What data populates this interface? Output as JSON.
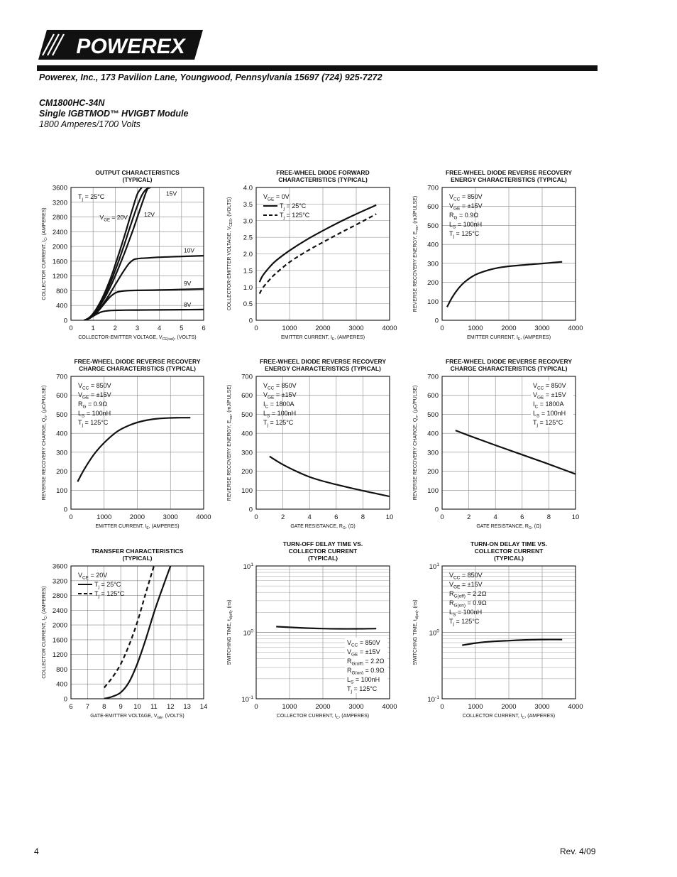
{
  "header": {
    "logo_text": "POWEREX",
    "address": "Powerex, Inc., 173 Pavilion Lane, Youngwood, Pennsylvania 15697 (724) 925-7272",
    "part_number": "CM1800HC-34N",
    "description": "Single IGBTMOD™ HVIGBT Module",
    "rating": "1800 Amperes/1700 Volts"
  },
  "footer": {
    "page": "4",
    "revision": "Rev. 4/09"
  },
  "chart_data": [
    {
      "id": "output",
      "type": "line",
      "title": [
        "OUTPUT CHARACTERISTICS",
        "(TYPICAL)"
      ],
      "xlabel": "COLLECTOR-EMITTER VOLTAGE, V_{CE(sat)}, (VOLTS)",
      "ylabel": "COLLECTOR CURRENT, I_{C}, (AMPERES)",
      "xlim": [
        0,
        6
      ],
      "ylim": [
        0,
        3600
      ],
      "xticks": [
        0,
        1,
        2,
        3,
        4,
        5,
        6
      ],
      "yticks": [
        0,
        400,
        800,
        1200,
        1600,
        2000,
        2400,
        2800,
        3200,
        3600
      ],
      "grid": true,
      "legend_text": [
        "T_{j} = 25°C"
      ],
      "series": [
        {
          "name": "V_{GE} = 20V",
          "style": "solid",
          "x": [
            0.6,
            0.8,
            1.0,
            1.2,
            1.4,
            1.6,
            1.8,
            2.0,
            2.2,
            2.4,
            2.6,
            2.8,
            3.0,
            3.2
          ],
          "y": [
            0,
            60,
            180,
            360,
            580,
            850,
            1150,
            1500,
            1870,
            2250,
            2650,
            3050,
            3420,
            3600
          ]
        },
        {
          "name": "15V",
          "style": "solid",
          "x": [
            0.6,
            0.8,
            1.0,
            1.2,
            1.4,
            1.6,
            1.8,
            2.0,
            2.2,
            2.4,
            2.6,
            2.8,
            3.0,
            3.2,
            3.4,
            3.6
          ],
          "y": [
            0,
            55,
            165,
            330,
            530,
            770,
            1040,
            1350,
            1680,
            2030,
            2400,
            2760,
            3100,
            3380,
            3550,
            3600
          ]
        },
        {
          "name": "12V",
          "style": "solid",
          "x": [
            0.6,
            0.8,
            1.0,
            1.2,
            1.4,
            1.6,
            1.8,
            2.0,
            2.2,
            2.4,
            2.6,
            2.8,
            3.0,
            3.2,
            3.4,
            3.5
          ],
          "y": [
            0,
            50,
            150,
            300,
            480,
            690,
            930,
            1200,
            1490,
            1790,
            2110,
            2440,
            2790,
            3140,
            3480,
            3600
          ]
        },
        {
          "name": "10V",
          "style": "solid",
          "x": [
            0.6,
            0.8,
            1.0,
            1.2,
            1.4,
            1.6,
            1.8,
            2.0,
            2.2,
            2.4,
            2.6,
            2.8,
            3.0,
            3.5,
            4.0,
            5.0,
            6.0
          ],
          "y": [
            0,
            45,
            130,
            250,
            400,
            570,
            760,
            960,
            1160,
            1350,
            1520,
            1630,
            1670,
            1690,
            1710,
            1730,
            1750
          ]
        },
        {
          "name": "9V",
          "style": "solid",
          "x": [
            0.6,
            0.8,
            1.0,
            1.2,
            1.4,
            1.6,
            1.8,
            2.0,
            2.2,
            2.5,
            3.0,
            4.0,
            5.0,
            6.0
          ],
          "y": [
            0,
            40,
            120,
            230,
            370,
            520,
            650,
            740,
            780,
            800,
            810,
            820,
            835,
            850
          ]
        },
        {
          "name": "8V",
          "style": "solid",
          "x": [
            0.6,
            0.8,
            1.0,
            1.2,
            1.4,
            1.6,
            1.8,
            2.0,
            2.5,
            3.0,
            4.0,
            5.0,
            6.0
          ],
          "y": [
            0,
            40,
            110,
            180,
            230,
            255,
            265,
            270,
            275,
            278,
            282,
            286,
            290
          ]
        }
      ],
      "curve_labels": [
        {
          "text": "V_{GE} = 20V",
          "x": 1.3,
          "y": 2730
        },
        {
          "text": "15V",
          "x": 4.3,
          "y": 3380
        },
        {
          "text": "12V",
          "x": 3.3,
          "y": 2810
        },
        {
          "text": "10V",
          "x": 5.1,
          "y": 1840
        },
        {
          "text": "9V",
          "x": 5.1,
          "y": 940
        },
        {
          "text": "8V",
          "x": 5.1,
          "y": 370
        }
      ]
    },
    {
      "id": "fwd-forward",
      "type": "line",
      "title": [
        "FREE-WHEEL DIODE FORWARD",
        "CHARACTERISTICS (TYPICAL)"
      ],
      "xlabel": "EMITTER CURRENT, I_{E}, (AMPERES)",
      "ylabel": "COLLECTOR-EMITTER VOLTAGE, V_{CES}, (VOLTS)",
      "xlim": [
        0,
        4000
      ],
      "ylim": [
        0,
        4.0
      ],
      "xticks": [
        0,
        1000,
        2000,
        3000,
        4000
      ],
      "yticks": [
        0,
        0.5,
        1.0,
        1.5,
        2.0,
        2.5,
        3.0,
        3.5,
        4.0
      ],
      "ytick_labels": [
        "0",
        "0.5",
        "1.0",
        "1.5",
        "2.0",
        "2.5",
        "3.0",
        "3.5",
        "4.0"
      ],
      "grid": true,
      "legend_text": [
        "V_{GE} = 0V"
      ],
      "series": [
        {
          "name": "T_{j} = 25°C",
          "style": "solid",
          "x": [
            100,
            200,
            400,
            600,
            1000,
            1500,
            2000,
            2500,
            3000,
            3600
          ],
          "y": [
            1.15,
            1.35,
            1.6,
            1.8,
            2.1,
            2.42,
            2.7,
            2.96,
            3.2,
            3.47
          ]
        },
        {
          "name": "T_{j} = 125°C",
          "style": "dashed",
          "x": [
            100,
            200,
            400,
            600,
            1000,
            1500,
            2000,
            2500,
            3000,
            3600
          ],
          "y": [
            0.8,
            0.98,
            1.22,
            1.42,
            1.75,
            2.07,
            2.35,
            2.62,
            2.88,
            3.2
          ]
        }
      ]
    },
    {
      "id": "fwd-rr-energy-ie",
      "type": "line",
      "title": [
        "FREE-WHEEL DIODE REVERSE RECOVERY",
        "ENERGY CHARACTERISTICS (TYPICAL)"
      ],
      "xlabel": "EMITTER CURRENT, I_{E}, (AMPERES)",
      "ylabel": "REVERSE RECOVERY ENERGY, E_{rec}, (mJ/PULSE)",
      "xlim": [
        0,
        4000
      ],
      "ylim": [
        0,
        700
      ],
      "xticks": [
        0,
        1000,
        2000,
        3000,
        4000
      ],
      "yticks": [
        0,
        100,
        200,
        300,
        400,
        500,
        600,
        700
      ],
      "grid": true,
      "legend_text": [
        "V_{CC} = 850V",
        "V_{GE} = ±15V",
        "R_{G} = 0.9Ω",
        "L_{S} = 100nH",
        "T_{j} = 125°C"
      ],
      "series": [
        {
          "name": "E_{rec}",
          "style": "solid",
          "x": [
            150,
            300,
            500,
            700,
            1000,
            1400,
            1800,
            2200,
            2700,
            3200,
            3600
          ],
          "y": [
            70,
            120,
            170,
            205,
            240,
            265,
            280,
            288,
            295,
            302,
            308
          ]
        }
      ]
    },
    {
      "id": "fwd-rr-charge-ie",
      "type": "line",
      "title": [
        "FREE-WHEEL DIODE REVERSE RECOVERY",
        "CHARGE CHARACTERISTICS (TYPICAL)"
      ],
      "xlabel": "EMITTER CURRENT, I_{E}, (AMPERES)",
      "ylabel": "REVERSE RECOVERY CHARGE, Q_{rr}, (μC/PULSE)",
      "xlim": [
        0,
        4000
      ],
      "ylim": [
        0,
        700
      ],
      "xticks": [
        0,
        1000,
        2000,
        3000,
        4000
      ],
      "yticks": [
        0,
        100,
        200,
        300,
        400,
        500,
        600,
        700
      ],
      "grid": true,
      "legend_text": [
        "V_{CC} = 850V",
        "V_{GE} = ±15V",
        "R_{G} = 0.9Ω",
        "L_{S} = 100nH",
        "T_{j} = 125°C"
      ],
      "series": [
        {
          "name": "Q_{rr}",
          "style": "solid",
          "x": [
            200,
            400,
            700,
            1000,
            1400,
            1800,
            2200,
            2600,
            3000,
            3300,
            3600
          ],
          "y": [
            145,
            210,
            290,
            350,
            410,
            445,
            466,
            477,
            481,
            482,
            482
          ]
        }
      ]
    },
    {
      "id": "fwd-rr-energy-rg",
      "type": "line",
      "title": [
        "FREE-WHEEL DIODE REVERSE RECOVERY",
        "ENERGY CHARACTERISTICS (TYPICAL)"
      ],
      "xlabel": "GATE RESISTANCE, R_{G}, (Ω)",
      "ylabel": "REVERSE RECOVERY ENERGY, E_{rec}, (mJ/PULSE)",
      "xlim": [
        0,
        10
      ],
      "ylim": [
        0,
        700
      ],
      "xticks": [
        0,
        2,
        4,
        6,
        8,
        10
      ],
      "yticks": [
        0,
        100,
        200,
        300,
        400,
        500,
        600,
        700
      ],
      "grid": true,
      "legend_text": [
        "V_{CC} = 850V",
        "V_{GE} = ±15V",
        "I_{C} = 1800A",
        "L_{S} = 100nH",
        "T_{j} = 125°C"
      ],
      "series": [
        {
          "name": "E_{rec}",
          "style": "solid",
          "x": [
            1,
            2,
            3,
            4,
            5,
            6,
            7,
            8,
            9,
            10
          ],
          "y": [
            278,
            235,
            200,
            170,
            148,
            130,
            113,
            97,
            82,
            67
          ]
        }
      ]
    },
    {
      "id": "fwd-rr-charge-rg",
      "type": "line",
      "title": [
        "FREE-WHEEL DIODE REVERSE RECOVERY",
        "CHARGE CHARACTERISTICS (TYPICAL)"
      ],
      "xlabel": "GATE RESISTANCE, R_{G}, (Ω)",
      "ylabel": "REVERSE RECOVERY CHARGE, Q_{rr}, (μC/PULSE)",
      "xlim": [
        0,
        10
      ],
      "ylim": [
        0,
        700
      ],
      "xticks": [
        0,
        2,
        4,
        6,
        8,
        10
      ],
      "yticks": [
        0,
        100,
        200,
        300,
        400,
        500,
        600,
        700
      ],
      "grid": true,
      "legend_text": [
        "V_{CC} = 850V",
        "V_{GE} = ±15V",
        "I_{C} = 1800A",
        "L_{S} = 100nH",
        "T_{j} = 125°C"
      ],
      "legend_position": "top-right",
      "series": [
        {
          "name": "Q_{rr}",
          "style": "solid",
          "x": [
            1,
            2,
            4,
            6,
            8,
            10
          ],
          "y": [
            415,
            388,
            337,
            287,
            237,
            185
          ]
        }
      ]
    },
    {
      "id": "transfer",
      "type": "line",
      "title": [
        "TRANSFER CHARACTERISTICS",
        "(TYPICAL)"
      ],
      "xlabel": "GATE-EMITTER VOLTAGE, V_{GE}, (VOLTS)",
      "ylabel": "COLLECTOR CURRENT, I_{C}, (AMPERES)",
      "xlim": [
        6,
        14
      ],
      "ylim": [
        0,
        3600
      ],
      "xticks": [
        6,
        7,
        8,
        9,
        10,
        11,
        12,
        13,
        14
      ],
      "yticks": [
        0,
        400,
        800,
        1200,
        1600,
        2000,
        2400,
        2800,
        3200,
        3600
      ],
      "grid": true,
      "legend_text": [
        "V_{CE} = 20V"
      ],
      "series": [
        {
          "name": "T_{j} = 25°C",
          "style": "solid",
          "x": [
            8.0,
            8.5,
            9.0,
            9.5,
            10.0,
            10.5,
            11.0,
            11.5,
            12.0
          ],
          "y": [
            0,
            60,
            170,
            450,
            950,
            1600,
            2330,
            2980,
            3600
          ]
        },
        {
          "name": "T_{j} = 125°C",
          "style": "dashed",
          "x": [
            8.0,
            8.5,
            9.0,
            9.5,
            10.0,
            10.5,
            11.0
          ],
          "y": [
            300,
            580,
            940,
            1450,
            2080,
            2850,
            3600
          ]
        }
      ]
    },
    {
      "id": "turn-off-delay",
      "type": "line",
      "title": [
        "TURN-OFF DELAY TIME VS.",
        "COLLECTOR CURRENT",
        "(TYPICAL)"
      ],
      "xlabel": "COLLECTOR CURRENT, I_{C}, (AMPERES)",
      "ylabel": "SWITCHING TIME, t_{d(off)}, (ns)",
      "xlim": [
        0,
        4000
      ],
      "ylim": [
        0.1,
        10
      ],
      "yscale": "log",
      "xticks": [
        0,
        1000,
        2000,
        3000,
        4000
      ],
      "ytick_labels": [
        "10^{-1}",
        "10^{0}",
        "10^{1}"
      ],
      "grid": true,
      "legend_text": [
        "V_{CC} = 850V",
        "V_{GE} = ±15V",
        "R_{G(off)} = 2.2Ω",
        "R_{G(on)} = 0.9Ω",
        "L_{S} = 100nH",
        "T_{j} = 125°C"
      ],
      "legend_position": "bottom-right",
      "series": [
        {
          "name": "t_{d(off)}",
          "style": "solid",
          "x": [
            600,
            1000,
            1500,
            2000,
            2500,
            3000,
            3600
          ],
          "y": [
            1.22,
            1.19,
            1.16,
            1.14,
            1.13,
            1.13,
            1.14
          ]
        }
      ]
    },
    {
      "id": "turn-on-delay",
      "type": "line",
      "title": [
        "TURN-ON DELAY TIME VS.",
        "COLLECTOR CURRENT",
        "(TYPICAL)"
      ],
      "xlabel": "COLLECTOR CURRENT, I_{C}, (AMPERES)",
      "ylabel": "SWITCHING TIME, t_{d(on)}, (ns)",
      "xlim": [
        0,
        4000
      ],
      "ylim": [
        0.1,
        10
      ],
      "yscale": "log",
      "xticks": [
        0,
        1000,
        2000,
        3000,
        4000
      ],
      "ytick_labels": [
        "10^{-1}",
        "10^{0}",
        "10^{1}"
      ],
      "grid": true,
      "legend_text": [
        "V_{CC} = 850V",
        "V_{GE} = ±15V",
        "R_{G(off)} = 2.2Ω",
        "R_{G(on)} = 0.9Ω",
        "L_{S} = 100nH",
        "T_{j} = 125°C"
      ],
      "series": [
        {
          "name": "t_{d(on)}",
          "style": "solid",
          "x": [
            600,
            1000,
            1500,
            2000,
            2500,
            3000,
            3600
          ],
          "y": [
            0.64,
            0.69,
            0.73,
            0.75,
            0.77,
            0.78,
            0.78
          ]
        }
      ]
    }
  ]
}
